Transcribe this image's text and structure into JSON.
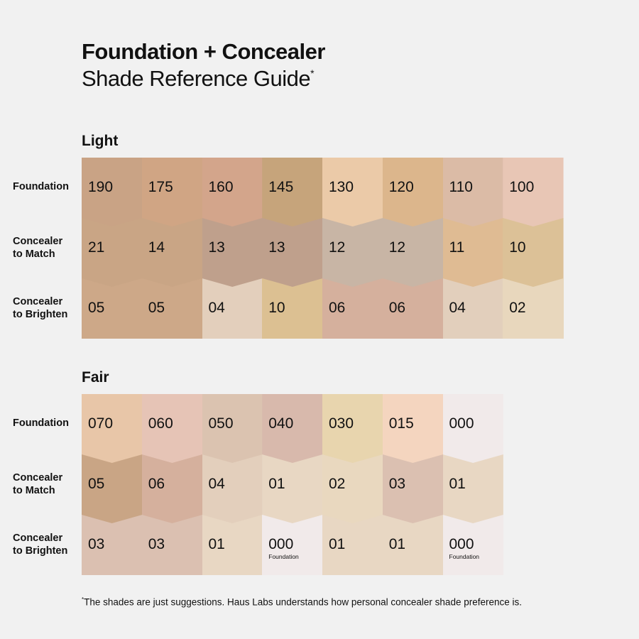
{
  "title": "Foundation + Concealer",
  "subtitle": "Shade Reference Guide",
  "subtitle_mark": "*",
  "row_labels": [
    "Foundation",
    "Concealer\nto Match",
    "Concealer\nto Brighten"
  ],
  "sections": [
    {
      "name": "Light",
      "rows": [
        [
          {
            "v": "190",
            "c": "#c9a385"
          },
          {
            "v": "175",
            "c": "#d0a584"
          },
          {
            "v": "160",
            "c": "#d3a58b"
          },
          {
            "v": "145",
            "c": "#c6a47b"
          },
          {
            "v": "130",
            "c": "#ebcaa8"
          },
          {
            "v": "120",
            "c": "#dcb68c"
          },
          {
            "v": "110",
            "c": "#dbbba6"
          },
          {
            "v": "100",
            "c": "#e8c6b5"
          }
        ],
        [
          {
            "v": "21",
            "c": "#c9a585"
          },
          {
            "v": "14",
            "c": "#c9a585"
          },
          {
            "v": "13",
            "c": "#bfa08c"
          },
          {
            "v": "13",
            "c": "#bfa08c"
          },
          {
            "v": "12",
            "c": "#c8b5a5"
          },
          {
            "v": "12",
            "c": "#c8b5a5"
          },
          {
            "v": "11",
            "c": "#dfbb93"
          },
          {
            "v": "10",
            "c": "#dcc197"
          }
        ],
        [
          {
            "v": "05",
            "c": "#cda888"
          },
          {
            "v": "05",
            "c": "#cda888"
          },
          {
            "v": "04",
            "c": "#e3cfbc"
          },
          {
            "v": "10",
            "c": "#dcc092"
          },
          {
            "v": "06",
            "c": "#d5b09d"
          },
          {
            "v": "06",
            "c": "#d5b09d"
          },
          {
            "v": "04",
            "c": "#e2cfbc"
          },
          {
            "v": "02",
            "c": "#e8d7bd"
          }
        ]
      ]
    },
    {
      "name": "Fair",
      "rows": [
        [
          {
            "v": "070",
            "c": "#e8c6a8"
          },
          {
            "v": "060",
            "c": "#e6c4b6"
          },
          {
            "v": "050",
            "c": "#dbc3b0"
          },
          {
            "v": "040",
            "c": "#d8b9ac"
          },
          {
            "v": "030",
            "c": "#e8d5ae"
          },
          {
            "v": "015",
            "c": "#f4d5bf"
          },
          {
            "v": "000",
            "c": "#f1eaea"
          }
        ],
        [
          {
            "v": "05",
            "c": "#c9a585"
          },
          {
            "v": "06",
            "c": "#d5b09d"
          },
          {
            "v": "04",
            "c": "#e3cfbc"
          },
          {
            "v": "01",
            "c": "#e8d7c3"
          },
          {
            "v": "02",
            "c": "#e9d8bf"
          },
          {
            "v": "03",
            "c": "#dbc0b1"
          },
          {
            "v": "01",
            "c": "#e8d7c3"
          }
        ],
        [
          {
            "v": "03",
            "c": "#dbc0b1"
          },
          {
            "v": "03",
            "c": "#dbc0b1"
          },
          {
            "v": "01",
            "c": "#e8d7c3"
          },
          {
            "v": "000",
            "c": "#f1eaea",
            "s": "Foundation"
          },
          {
            "v": "01",
            "c": "#e8d7c3"
          },
          {
            "v": "01",
            "c": "#e8d7c3"
          },
          {
            "v": "000",
            "c": "#f1eaea",
            "s": "Foundation"
          }
        ]
      ]
    }
  ],
  "footnote_mark": "*",
  "footnote": "The shades are just suggestions. Haus Labs understands how personal concealer shade preference is."
}
